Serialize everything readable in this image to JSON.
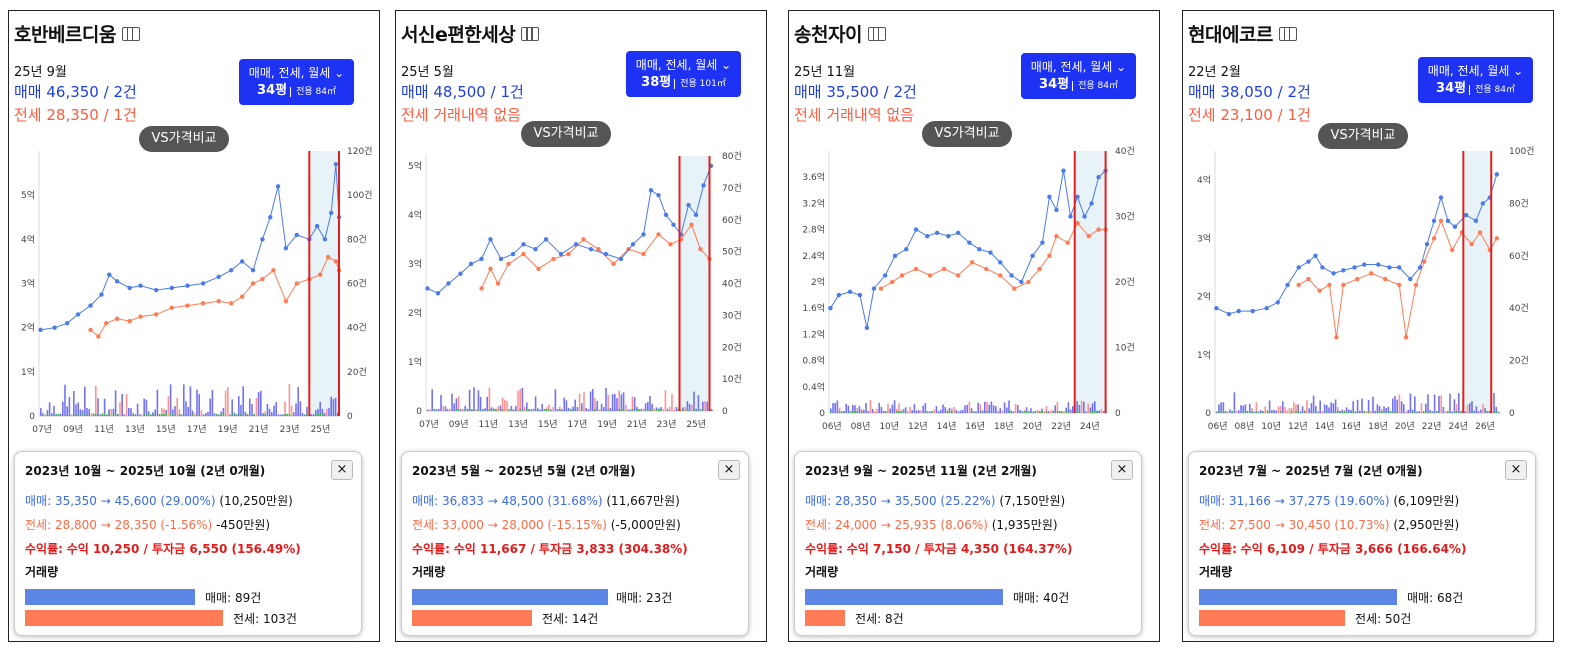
{
  "common": {
    "filter_label": "매매, 전세, 월세",
    "vs_label": "VS가격비교",
    "volume_label": "거래량",
    "close_icon": "×"
  },
  "panels": [
    {
      "name": "호반베르디움",
      "date": "25년 9월",
      "sale": "매매 46,350 / 2건",
      "jeonse": "전세 28,350 / 1건",
      "size": "34평",
      "area": "전용 84㎡",
      "card": {
        "period": "2023년 10월 ~ 2025년 10월 (2년 0개월)",
        "sale_label": "매매:",
        "sale_change": "35,350 → 45,600 (29.00%)",
        "sale_diff": "(10,250만원)",
        "jeonse_label": "전세:",
        "jeonse_change": "28,800 → 28,350 (-1.56%)",
        "jeonse_diff": "-450만원)",
        "yield_label": "수익률:",
        "yield_text": "수익 10,250 / 투자금 6,550 (156.49%)",
        "sale_volume": "매매: 89건",
        "jeonse_volume": "전세: 103건"
      }
    },
    {
      "name": "서신e편한세상",
      "date": "25년 5월",
      "sale": "매매 48,500 / 1건",
      "jeonse": "전세 거래내역 없음",
      "size": "38평",
      "area": "전용 101㎡",
      "card": {
        "period": "2023년 5월 ~ 2025년 5월 (2년 0개월)",
        "sale_label": "매매:",
        "sale_change": "36,833 → 48,500 (31.68%)",
        "sale_diff": "(11,667만원)",
        "jeonse_label": "전세:",
        "jeonse_change": "33,000 → 28,000 (-15.15%)",
        "jeonse_diff": "(-5,000만원)",
        "yield_label": "수익률:",
        "yield_text": "수익 11,667 / 투자금 3,833 (304.38%)",
        "sale_volume": "매매: 23건",
        "jeonse_volume": "전세: 14건"
      }
    },
    {
      "name": "송천자이",
      "date": "25년 11월",
      "sale": "매매 35,500 / 2건",
      "jeonse": "전세 거래내역 없음",
      "size": "34평",
      "area": "전용 84㎡",
      "card": {
        "period": "2023년 9월 ~ 2025년 11월 (2년 2개월)",
        "sale_label": "매매:",
        "sale_change": "28,350 → 35,500 (25.22%)",
        "sale_diff": "(7,150만원)",
        "jeonse_label": "전세:",
        "jeonse_change": "24,000 → 25,935 (8.06%)",
        "jeonse_diff": "(1,935만원)",
        "yield_label": "수익률:",
        "yield_text": "수익 7,150 / 투자금 4,350 (164.37%)",
        "sale_volume": "매매: 40건",
        "jeonse_volume": "전세: 8건"
      }
    },
    {
      "name": "현대에코르",
      "date": "22년 2월",
      "sale": "매매 38,050 / 2건",
      "jeonse": "전세 23,100 / 1건",
      "size": "34평",
      "area": "전용 84㎡",
      "card": {
        "period": "2023년 7월 ~ 2025년 7월 (2년 0개월)",
        "sale_label": "매매:",
        "sale_change": "31,166 → 37,275 (19.60%)",
        "sale_diff": "(6,109만원)",
        "jeonse_label": "전세:",
        "jeonse_change": "27,500 → 30,450 (10.73%)",
        "jeonse_diff": "(2,950만원)",
        "yield_label": "수익률:",
        "yield_text": "수익 6,109 / 투자금 3,666 (166.64%)",
        "sale_volume": "매매: 68건",
        "jeonse_volume": "전세: 50건"
      }
    }
  ],
  "chart_data": [
    {
      "type": "line",
      "colors": {
        "sale": "#4a7be8",
        "jeonse": "#ff7b55",
        "volume_sale": "#5b5bef",
        "volume_jeonse": "#ff8080",
        "volume_wolse": "#3cb44b",
        "highlight": "#e8f3f8",
        "marker": "#e02020"
      },
      "x_ticks": [
        "07년",
        "09년",
        "11년",
        "13년",
        "15년",
        "17년",
        "19년",
        "21년",
        "23년",
        "25년"
      ],
      "y_ticks": [
        "0",
        "1억",
        "2억",
        "3억",
        "4억",
        "5억"
      ],
      "y2_ticks": [
        "0",
        "20건",
        "40건",
        "60건",
        "80건",
        "100건",
        "120건"
      ],
      "x_range": [
        2006.5,
        2025.7
      ],
      "y_range": [
        0,
        6
      ],
      "y2_range": [
        0,
        120
      ],
      "highlight_range": [
        2023.8,
        2025.8
      ],
      "sale": [
        [
          2006.6,
          1.95
        ],
        [
          2007.5,
          2.0
        ],
        [
          2008.3,
          2.1
        ],
        [
          2009.0,
          2.3
        ],
        [
          2009.8,
          2.5
        ],
        [
          2010.5,
          2.75
        ],
        [
          2011.0,
          3.2
        ],
        [
          2011.5,
          3.05
        ],
        [
          2012.3,
          2.9
        ],
        [
          2013.0,
          2.95
        ],
        [
          2014.0,
          2.85
        ],
        [
          2015.0,
          2.9
        ],
        [
          2016.0,
          2.95
        ],
        [
          2017.0,
          3.0
        ],
        [
          2018.0,
          3.15
        ],
        [
          2018.8,
          3.3
        ],
        [
          2019.5,
          3.5
        ],
        [
          2020.2,
          3.3
        ],
        [
          2020.8,
          4.0
        ],
        [
          2021.3,
          4.5
        ],
        [
          2021.8,
          5.2
        ],
        [
          2022.3,
          3.8
        ],
        [
          2023.0,
          4.1
        ],
        [
          2023.8,
          4.0
        ],
        [
          2024.3,
          4.3
        ],
        [
          2024.8,
          4.0
        ],
        [
          2025.2,
          4.6
        ],
        [
          2025.5,
          5.7
        ],
        [
          2025.7,
          4.5
        ]
      ],
      "jeonse": [
        [
          2009.8,
          1.95
        ],
        [
          2010.3,
          1.8
        ],
        [
          2010.8,
          2.1
        ],
        [
          2011.5,
          2.2
        ],
        [
          2012.3,
          2.15
        ],
        [
          2013.0,
          2.25
        ],
        [
          2014.0,
          2.3
        ],
        [
          2015.0,
          2.45
        ],
        [
          2016.0,
          2.5
        ],
        [
          2017.0,
          2.55
        ],
        [
          2018.0,
          2.6
        ],
        [
          2018.8,
          2.55
        ],
        [
          2019.5,
          2.7
        ],
        [
          2020.2,
          3.0
        ],
        [
          2020.8,
          3.1
        ],
        [
          2021.5,
          3.3
        ],
        [
          2022.3,
          2.6
        ],
        [
          2023.0,
          3.0
        ],
        [
          2023.8,
          3.1
        ],
        [
          2024.5,
          3.2
        ],
        [
          2025.0,
          3.6
        ],
        [
          2025.5,
          3.5
        ],
        [
          2025.7,
          3.3
        ]
      ],
      "volume_peak": 22
    },
    {
      "type": "line",
      "colors": {
        "sale": "#4a7be8",
        "jeonse": "#ff7b55",
        "volume_sale": "#5b5bef",
        "volume_jeonse": "#ff8080",
        "volume_wolse": "#3cb44b",
        "highlight": "#e8f3f8",
        "marker": "#e02020"
      },
      "x_ticks": [
        "07년",
        "09년",
        "11년",
        "13년",
        "15년",
        "17년",
        "19년",
        "21년",
        "23년",
        "25년"
      ],
      "y_ticks": [
        "0",
        "1억",
        "2억",
        "3억",
        "4억",
        "5억"
      ],
      "y2_ticks": [
        "0",
        "10건",
        "20건",
        "30건",
        "40건",
        "50건",
        "60건",
        "70건",
        "80건"
      ],
      "x_range": [
        2006.5,
        2025.7
      ],
      "y_range": [
        0,
        5.2
      ],
      "y2_range": [
        0,
        80
      ],
      "highlight_range": [
        2023.4,
        2025.4
      ],
      "sale": [
        [
          2006.6,
          2.5
        ],
        [
          2007.3,
          2.4
        ],
        [
          2008.0,
          2.6
        ],
        [
          2008.8,
          2.8
        ],
        [
          2009.5,
          3.0
        ],
        [
          2010.2,
          3.1
        ],
        [
          2010.8,
          3.5
        ],
        [
          2011.5,
          3.1
        ],
        [
          2012.3,
          3.2
        ],
        [
          2013.0,
          3.4
        ],
        [
          2013.8,
          3.3
        ],
        [
          2014.5,
          3.5
        ],
        [
          2015.5,
          3.2
        ],
        [
          2016.5,
          3.4
        ],
        [
          2017.5,
          3.3
        ],
        [
          2018.5,
          3.2
        ],
        [
          2019.5,
          3.1
        ],
        [
          2020.3,
          3.4
        ],
        [
          2021.0,
          3.6
        ],
        [
          2021.5,
          4.5
        ],
        [
          2022.0,
          4.4
        ],
        [
          2022.5,
          4.0
        ],
        [
          2023.0,
          3.8
        ],
        [
          2023.5,
          3.6
        ],
        [
          2024.0,
          4.2
        ],
        [
          2024.5,
          4.0
        ],
        [
          2025.0,
          4.6
        ],
        [
          2025.5,
          5.0
        ]
      ],
      "jeonse": [
        [
          2010.2,
          2.5
        ],
        [
          2010.8,
          2.9
        ],
        [
          2011.3,
          2.6
        ],
        [
          2012.0,
          3.0
        ],
        [
          2013.0,
          3.2
        ],
        [
          2014.0,
          2.9
        ],
        [
          2015.0,
          3.1
        ],
        [
          2016.0,
          3.2
        ],
        [
          2017.0,
          3.5
        ],
        [
          2018.0,
          3.3
        ],
        [
          2019.0,
          3.0
        ],
        [
          2020.0,
          3.3
        ],
        [
          2021.0,
          3.2
        ],
        [
          2022.0,
          3.6
        ],
        [
          2022.8,
          3.4
        ],
        [
          2023.5,
          3.5
        ],
        [
          2024.2,
          3.8
        ],
        [
          2024.8,
          3.3
        ],
        [
          2025.4,
          3.1
        ]
      ],
      "volume_peak": 16
    },
    {
      "type": "line",
      "colors": {
        "sale": "#4a7be8",
        "jeonse": "#ff7b55",
        "volume_sale": "#5b5bef",
        "volume_jeonse": "#ff8080",
        "volume_wolse": "#3cb44b",
        "highlight": "#e8f3f8",
        "marker": "#e02020"
      },
      "x_ticks": [
        "06년",
        "08년",
        "10년",
        "12년",
        "14년",
        "16년",
        "18년",
        "20년",
        "22년",
        "24년"
      ],
      "y_ticks": [
        "0",
        "0.4억",
        "0.8억",
        "1.2억",
        "1.6억",
        "2억",
        "2.4억",
        "2.8억",
        "3.2억",
        "3.6억"
      ],
      "y2_ticks": [
        "0",
        "10건",
        "20건",
        "30건",
        "40건"
      ],
      "x_range": [
        2005.8,
        2025.6
      ],
      "y_range": [
        0,
        4.0
      ],
      "y2_range": [
        0,
        40
      ],
      "highlight_range": [
        2023.3,
        2025.5
      ],
      "sale": [
        [
          2005.9,
          1.6
        ],
        [
          2006.5,
          1.8
        ],
        [
          2007.3,
          1.85
        ],
        [
          2008.0,
          1.8
        ],
        [
          2008.5,
          1.3
        ],
        [
          2009.0,
          1.9
        ],
        [
          2009.8,
          2.1
        ],
        [
          2010.5,
          2.4
        ],
        [
          2011.3,
          2.5
        ],
        [
          2012.0,
          2.8
        ],
        [
          2012.8,
          2.7
        ],
        [
          2013.5,
          2.75
        ],
        [
          2014.3,
          2.7
        ],
        [
          2015.0,
          2.75
        ],
        [
          2015.8,
          2.6
        ],
        [
          2016.5,
          2.5
        ],
        [
          2017.3,
          2.45
        ],
        [
          2018.0,
          2.3
        ],
        [
          2018.8,
          2.1
        ],
        [
          2019.5,
          2.0
        ],
        [
          2020.3,
          2.4
        ],
        [
          2021.0,
          2.6
        ],
        [
          2021.5,
          3.3
        ],
        [
          2022.0,
          3.1
        ],
        [
          2022.5,
          3.7
        ],
        [
          2023.0,
          3.0
        ],
        [
          2023.5,
          3.3
        ],
        [
          2024.0,
          3.0
        ],
        [
          2024.5,
          3.2
        ],
        [
          2025.0,
          3.6
        ],
        [
          2025.5,
          3.7
        ]
      ],
      "jeonse": [
        [
          2009.5,
          1.9
        ],
        [
          2010.3,
          2.0
        ],
        [
          2011.0,
          2.1
        ],
        [
          2012.0,
          2.2
        ],
        [
          2013.0,
          2.1
        ],
        [
          2014.0,
          2.2
        ],
        [
          2015.0,
          2.1
        ],
        [
          2016.0,
          2.3
        ],
        [
          2017.0,
          2.2
        ],
        [
          2018.0,
          2.1
        ],
        [
          2019.0,
          1.9
        ],
        [
          2020.0,
          2.0
        ],
        [
          2020.8,
          2.2
        ],
        [
          2021.5,
          2.4
        ],
        [
          2022.0,
          2.7
        ],
        [
          2022.8,
          2.6
        ],
        [
          2023.5,
          2.9
        ],
        [
          2024.3,
          2.7
        ],
        [
          2025.0,
          2.8
        ],
        [
          2025.5,
          2.8
        ]
      ],
      "volume_peak": 9
    },
    {
      "type": "line",
      "colors": {
        "sale": "#4a7be8",
        "jeonse": "#ff7b55",
        "volume_sale": "#5b5bef",
        "volume_jeonse": "#ff8080",
        "volume_wolse": "#3cb44b",
        "highlight": "#e8f3f8",
        "marker": "#e02020"
      },
      "x_ticks": [
        "06년",
        "08년",
        "10년",
        "12년",
        "14년",
        "16년",
        "18년",
        "20년",
        "22년",
        "24년",
        "26년"
      ],
      "y_ticks": [
        "0",
        "1억",
        "2억",
        "3억",
        "4억"
      ],
      "y2_ticks": [
        "0",
        "20건",
        "40건",
        "60건",
        "80건",
        "100건"
      ],
      "x_range": [
        2005.8,
        2026.3
      ],
      "y_range": [
        0,
        4.5
      ],
      "y2_range": [
        0,
        100
      ],
      "highlight_range": [
        2023.6,
        2025.6
      ],
      "sale": [
        [
          2005.9,
          1.8
        ],
        [
          2006.8,
          1.7
        ],
        [
          2007.5,
          1.75
        ],
        [
          2008.5,
          1.75
        ],
        [
          2009.5,
          1.8
        ],
        [
          2010.3,
          1.9
        ],
        [
          2011.0,
          2.2
        ],
        [
          2011.8,
          2.5
        ],
        [
          2012.5,
          2.6
        ],
        [
          2013.0,
          2.7
        ],
        [
          2013.5,
          2.5
        ],
        [
          2014.3,
          2.4
        ],
        [
          2015.0,
          2.45
        ],
        [
          2015.8,
          2.5
        ],
        [
          2016.5,
          2.55
        ],
        [
          2017.5,
          2.55
        ],
        [
          2018.3,
          2.5
        ],
        [
          2019.0,
          2.5
        ],
        [
          2019.8,
          2.3
        ],
        [
          2020.5,
          2.5
        ],
        [
          2021.0,
          2.9
        ],
        [
          2021.5,
          3.3
        ],
        [
          2022.0,
          3.7
        ],
        [
          2022.5,
          3.3
        ],
        [
          2023.0,
          3.2
        ],
        [
          2023.8,
          3.4
        ],
        [
          2024.5,
          3.3
        ],
        [
          2025.0,
          3.6
        ],
        [
          2025.5,
          3.7
        ],
        [
          2026.0,
          4.1
        ]
      ],
      "jeonse": [
        [
          2011.8,
          2.2
        ],
        [
          2012.5,
          2.3
        ],
        [
          2013.3,
          2.1
        ],
        [
          2014.0,
          2.2
        ],
        [
          2014.5,
          1.3
        ],
        [
          2015.0,
          2.2
        ],
        [
          2016.0,
          2.3
        ],
        [
          2017.0,
          2.4
        ],
        [
          2018.0,
          2.3
        ],
        [
          2019.0,
          2.2
        ],
        [
          2019.5,
          1.3
        ],
        [
          2020.2,
          2.2
        ],
        [
          2020.8,
          2.6
        ],
        [
          2021.5,
          3.0
        ],
        [
          2022.0,
          3.3
        ],
        [
          2022.8,
          2.8
        ],
        [
          2023.5,
          3.1
        ],
        [
          2024.2,
          2.9
        ],
        [
          2024.8,
          3.1
        ],
        [
          2025.5,
          2.8
        ],
        [
          2026.0,
          3.0
        ]
      ],
      "volume_peak": 14
    }
  ]
}
